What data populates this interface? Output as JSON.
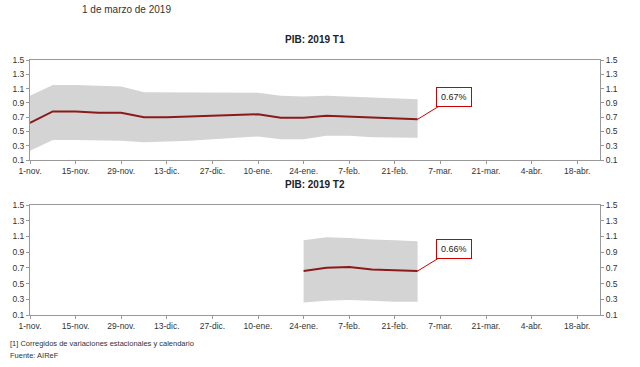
{
  "header": "1 de marzo de 2019",
  "footnotes": [
    "[1] Corregidos de variaciones estacionales y calendario",
    "Fuente: AIReF"
  ],
  "chart_data": [
    {
      "type": "line",
      "title": "PIB: 2019 T1",
      "categories": [
        "1-nov.",
        null,
        "15-nov.",
        null,
        "29-nov.",
        null,
        "13-dic.",
        null,
        "27-dic.",
        null,
        "10-ene.",
        null,
        "24-ene.",
        null,
        "7-feb.",
        null,
        "21-feb.",
        null,
        "7-mar.",
        null,
        "21-mar.",
        null,
        "4-abr.",
        null,
        "18-abr.",
        null
      ],
      "values": [
        0.62,
        0.78,
        0.78,
        0.76,
        0.76,
        0.7,
        0.7,
        0.71,
        0.72,
        0.72,
        0.74,
        0.69,
        0.69,
        0.72,
        0.71,
        0.69,
        0.68,
        0.67,
        null,
        null,
        null,
        null,
        null,
        null,
        null,
        null
      ],
      "color": "#8b1a1a",
      "band": {
        "lower": [
          0.23,
          0.38,
          0.38,
          0.38,
          0.37,
          0.35,
          0.36,
          0.37,
          0.38,
          0.41,
          0.43,
          0.39,
          0.39,
          0.44,
          0.44,
          0.42,
          0.41,
          0.41,
          null,
          null,
          null,
          null,
          null,
          null,
          null,
          null
        ],
        "upper": [
          1.0,
          1.15,
          1.15,
          1.14,
          1.13,
          1.05,
          1.05,
          1.05,
          1.05,
          1.05,
          1.04,
          1.0,
          0.99,
          1.0,
          0.99,
          0.97,
          0.96,
          0.95,
          null,
          null,
          null,
          null,
          null,
          null,
          null,
          null
        ],
        "color": "#d4d4d4"
      },
      "ylim": [
        0.1,
        1.5
      ],
      "yticks": [
        0.1,
        0.3,
        0.5,
        0.7,
        0.9,
        1.1,
        1.3,
        1.5
      ],
      "y2lim": [
        0.1,
        1.5
      ],
      "y2ticks": [
        0.1,
        0.3,
        0.5,
        0.7,
        0.9,
        1.1,
        1.3,
        1.5
      ],
      "grid": false,
      "annotations": [
        {
          "text": "0.67%",
          "value": 0.67,
          "color": "#cc0000"
        }
      ]
    },
    {
      "type": "line",
      "title": "PIB: 2019 T2",
      "categories": [
        "1-nov.",
        null,
        "15-nov.",
        null,
        "29-nov.",
        null,
        "13-dic.",
        null,
        "27-dic.",
        null,
        "10-ene.",
        null,
        "24-ene.",
        null,
        "7-feb.",
        null,
        "21-feb.",
        null,
        "7-mar.",
        null,
        "21-mar.",
        null,
        "4-abr.",
        null,
        "18-abr.",
        null
      ],
      "values": [
        null,
        null,
        null,
        null,
        null,
        null,
        null,
        null,
        null,
        null,
        null,
        null,
        0.66,
        0.7,
        0.71,
        0.68,
        0.67,
        0.66,
        null,
        null,
        null,
        null,
        null,
        null,
        null,
        null
      ],
      "color": "#8b1a1a",
      "band": {
        "lower": [
          null,
          null,
          null,
          null,
          null,
          null,
          null,
          null,
          null,
          null,
          null,
          null,
          0.26,
          0.28,
          0.29,
          0.28,
          0.27,
          0.27,
          null,
          null,
          null,
          null,
          null,
          null,
          null,
          null
        ],
        "upper": [
          null,
          null,
          null,
          null,
          null,
          null,
          null,
          null,
          null,
          null,
          null,
          null,
          1.05,
          1.09,
          1.08,
          1.06,
          1.05,
          1.04,
          null,
          null,
          null,
          null,
          null,
          null,
          null,
          null
        ],
        "color": "#d4d4d4"
      },
      "ylim": [
        0.1,
        1.5
      ],
      "yticks": [
        0.1,
        0.3,
        0.5,
        0.7,
        0.9,
        1.1,
        1.3,
        1.5
      ],
      "y2lim": [
        0.1,
        1.5
      ],
      "y2ticks": [
        0.1,
        0.3,
        0.5,
        0.7,
        0.9,
        1.1,
        1.3,
        1.5
      ],
      "grid": false,
      "annotations": [
        {
          "text": "0.66%",
          "value": 0.66,
          "color": "#cc0000"
        }
      ]
    }
  ]
}
